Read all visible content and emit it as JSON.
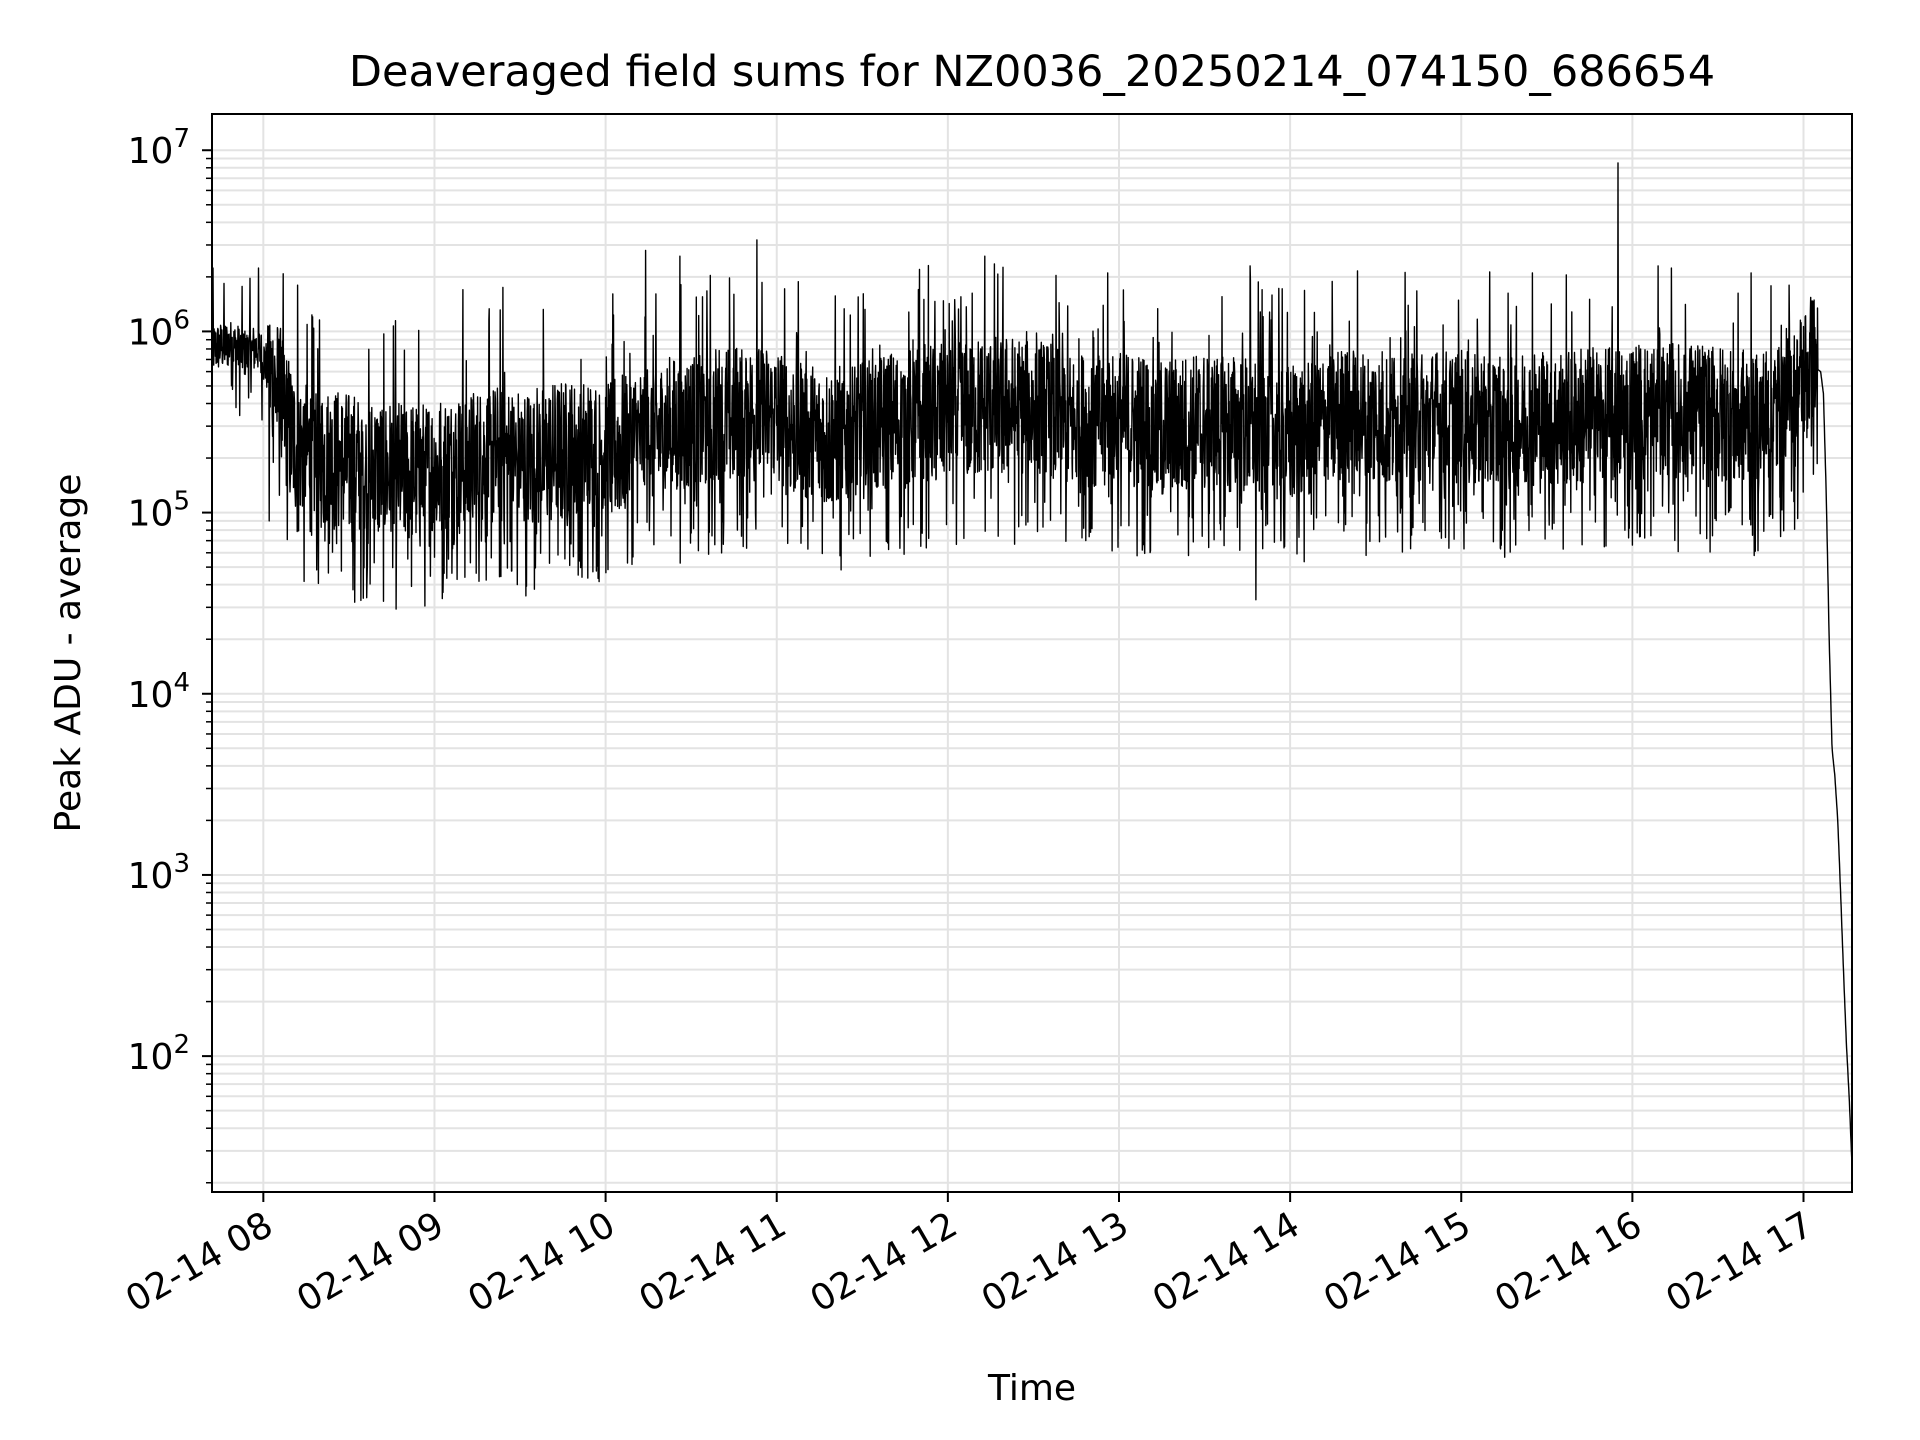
{
  "chart_data": {
    "type": "line",
    "title": "Deaveraged field sums for NZ0036_20250214_074150_686654",
    "xlabel": "Time",
    "ylabel": "Peak ADU - average",
    "yscale": "log",
    "grid": true,
    "line_color": "#000000",
    "grid_color": "#e3e3e3",
    "xlim": [
      "2025-02-14 07:42",
      "2025-02-14 17:17"
    ],
    "ylim_log10": [
      1.25,
      7.2
    ],
    "x_ticks": [
      {
        "value": "2025-02-14 08:00",
        "label": "02-14 08"
      },
      {
        "value": "2025-02-14 09:00",
        "label": "02-14 09"
      },
      {
        "value": "2025-02-14 10:00",
        "label": "02-14 10"
      },
      {
        "value": "2025-02-14 11:00",
        "label": "02-14 11"
      },
      {
        "value": "2025-02-14 12:00",
        "label": "02-14 12"
      },
      {
        "value": "2025-02-14 13:00",
        "label": "02-14 13"
      },
      {
        "value": "2025-02-14 14:00",
        "label": "02-14 14"
      },
      {
        "value": "2025-02-14 15:00",
        "label": "02-14 15"
      },
      {
        "value": "2025-02-14 16:00",
        "label": "02-14 16"
      },
      {
        "value": "2025-02-14 17:00",
        "label": "02-14 17"
      }
    ],
    "y_ticks": [
      {
        "exp": 2,
        "base": "10",
        "sup": "2"
      },
      {
        "exp": 3,
        "base": "10",
        "sup": "3"
      },
      {
        "exp": 4,
        "base": "10",
        "sup": "4"
      },
      {
        "exp": 5,
        "base": "10",
        "sup": "5"
      },
      {
        "exp": 6,
        "base": "10",
        "sup": "6"
      },
      {
        "exp": 7,
        "base": "10",
        "sup": "7"
      }
    ],
    "series": [
      {
        "x": [
          "2025-02-14 07:42",
          "2025-02-14 07:48",
          "2025-02-14 07:54",
          "2025-02-14 07:58",
          "2025-02-14 08:02",
          "2025-02-14 08:05",
          "2025-02-14 08:10",
          "2025-02-14 08:15",
          "2025-02-14 08:20",
          "2025-02-14 08:30",
          "2025-02-14 08:40",
          "2025-02-14 08:50",
          "2025-02-14 09:00",
          "2025-02-14 09:10",
          "2025-02-14 09:20",
          "2025-02-14 09:30",
          "2025-02-14 09:45",
          "2025-02-14 10:00",
          "2025-02-14 10:15",
          "2025-02-14 10:30",
          "2025-02-14 10:45",
          "2025-02-14 11:00",
          "2025-02-14 11:15",
          "2025-02-14 11:30",
          "2025-02-14 11:45",
          "2025-02-14 12:00",
          "2025-02-14 12:15",
          "2025-02-14 12:30",
          "2025-02-14 12:45",
          "2025-02-14 13:00",
          "2025-02-14 13:15",
          "2025-02-14 13:30",
          "2025-02-14 13:45",
          "2025-02-14 14:00",
          "2025-02-14 14:15",
          "2025-02-14 14:30",
          "2025-02-14 14:45",
          "2025-02-14 15:00",
          "2025-02-14 15:15",
          "2025-02-14 15:30",
          "2025-02-14 15:45",
          "2025-02-14 16:00",
          "2025-02-14 16:15",
          "2025-02-14 16:30",
          "2025-02-14 16:45",
          "2025-02-14 16:55",
          "2025-02-14 17:03",
          "2025-02-14 17:06",
          "2025-02-14 17:07",
          "2025-02-14 17:08",
          "2025-02-14 17:09",
          "2025-02-14 17:10",
          "2025-02-14 17:11",
          "2025-02-14 17:12",
          "2025-02-14 17:13",
          "2025-02-14 17:14",
          "2025-02-14 17:15",
          "2025-02-14 17:16",
          "2025-02-14 17:17"
        ],
        "y": [
          800000,
          850000,
          750000,
          820000,
          600000,
          450000,
          250000,
          220000,
          200000,
          180000,
          170000,
          160000,
          170000,
          180000,
          200000,
          190000,
          210000,
          220000,
          260000,
          300000,
          340000,
          330000,
          250000,
          280000,
          320000,
          350000,
          380000,
          360000,
          300000,
          320000,
          280000,
          300000,
          290000,
          260000,
          320000,
          330000,
          310000,
          320000,
          300000,
          320000,
          330000,
          340000,
          350000,
          330000,
          320000,
          400000,
          650000,
          600000,
          450000,
          120000,
          20000,
          5000,
          3500,
          2000,
          800,
          300,
          120,
          60,
          25
        ]
      }
    ],
    "spikes": [
      {
        "x": "2025-02-14 08:02",
        "y": 90000
      },
      {
        "x": "2025-02-14 08:12",
        "y": 1800000
      },
      {
        "x": "2025-02-14 08:32",
        "y": 32000
      },
      {
        "x": "2025-02-14 09:10",
        "y": 1700000
      },
      {
        "x": "2025-02-14 09:24",
        "y": 1750000
      },
      {
        "x": "2025-02-14 10:14",
        "y": 2800000
      },
      {
        "x": "2025-02-14 10:26",
        "y": 2600000
      },
      {
        "x": "2025-02-14 10:53",
        "y": 3200000
      },
      {
        "x": "2025-02-14 11:50",
        "y": 2200000
      },
      {
        "x": "2025-02-14 12:13",
        "y": 2600000
      },
      {
        "x": "2025-02-14 12:56",
        "y": 2100000
      },
      {
        "x": "2025-02-14 13:46",
        "y": 2300000
      },
      {
        "x": "2025-02-14 13:48",
        "y": 33000
      },
      {
        "x": "2025-02-14 15:25",
        "y": 2100000
      },
      {
        "x": "2025-02-14 15:55",
        "y": 8500000
      },
      {
        "x": "2025-02-14 16:09",
        "y": 2300000
      },
      {
        "x": "2025-02-14 16:55",
        "y": 1800000
      }
    ]
  }
}
